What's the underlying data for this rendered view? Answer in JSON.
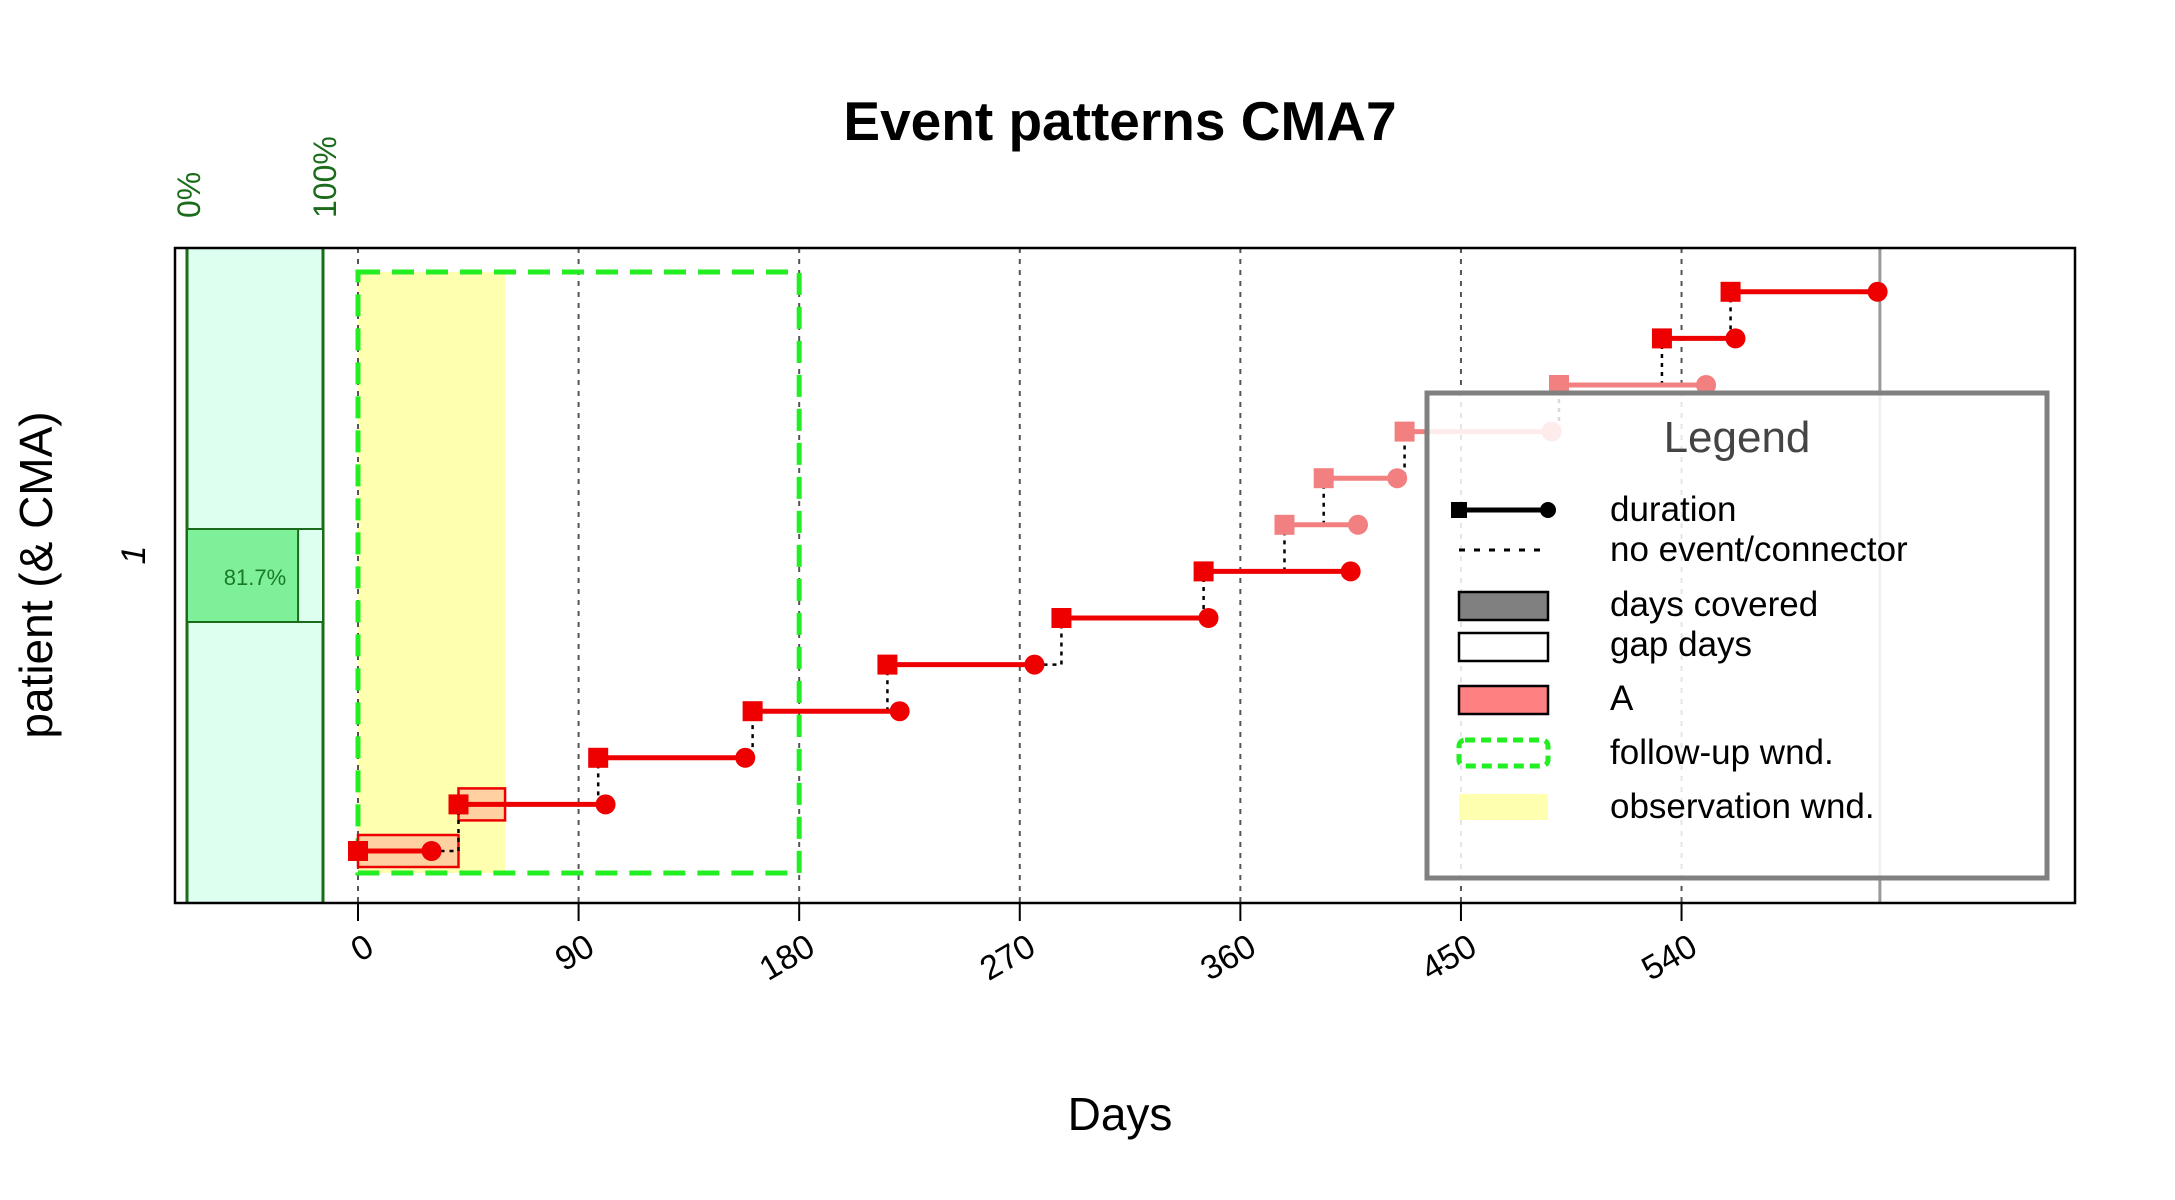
{
  "chart_data": {
    "type": "event-timeline",
    "title": "Event patterns CMA7",
    "xlabel": "Days",
    "ylabel": "patient (& CMA)",
    "xlim": [
      -67,
      625
    ],
    "x_ticks": [
      0,
      90,
      180,
      270,
      360,
      450,
      540
    ],
    "x_tick_labels": [
      "0",
      "90",
      "180",
      "270",
      "360",
      "450",
      "540"
    ],
    "patient_label": "1",
    "cma": {
      "value": 0.817,
      "label": "81.7%",
      "scale_labels": [
        "0%",
        "100%"
      ]
    },
    "follow_up_window": [
      0,
      180
    ],
    "observation_window": [
      0,
      60
    ],
    "events": [
      {
        "start": 0,
        "end": 30,
        "medication": "A",
        "in_window": true
      },
      {
        "start": 41,
        "end": 101,
        "medication": "A",
        "in_window": true
      },
      {
        "start": 98,
        "end": 158,
        "medication": "A",
        "in_window": true
      },
      {
        "start": 161,
        "end": 221,
        "medication": "A",
        "in_window": true
      },
      {
        "start": 216,
        "end": 276,
        "medication": "A",
        "in_window": true
      },
      {
        "start": 287,
        "end": 347,
        "medication": "A",
        "in_window": true
      },
      {
        "start": 345,
        "end": 405,
        "medication": "A",
        "in_window": true
      },
      {
        "start": 378,
        "end": 408,
        "medication": "A",
        "in_window": true
      },
      {
        "start": 394,
        "end": 424,
        "medication": "A",
        "in_window": true
      },
      {
        "start": 427,
        "end": 487,
        "medication": "A",
        "in_window": true
      },
      {
        "start": 490,
        "end": 550,
        "medication": "A",
        "in_window": true
      },
      {
        "start": 532,
        "end": 562,
        "medication": "A",
        "in_window": true
      },
      {
        "start": 560,
        "end": 620,
        "medication": "A",
        "in_window": true
      }
    ],
    "coverage_boxes": [
      {
        "start": 0,
        "end": 41
      },
      {
        "start": 41,
        "end": 60
      }
    ],
    "legend": {
      "title": "Legend",
      "placement": "right",
      "items": [
        {
          "label": "duration",
          "symbol": "line-square-dot",
          "color": "#000000"
        },
        {
          "label": "no event/connector",
          "symbol": "dotted-line",
          "color": "#000000"
        },
        {
          "label": "days covered",
          "symbol": "box",
          "color": "#808080"
        },
        {
          "label": "gap days",
          "symbol": "box",
          "color": "#ffffff"
        },
        {
          "label": "A",
          "symbol": "box",
          "color": "#ff8080"
        },
        {
          "label": "follow-up wnd.",
          "symbol": "dashed-box",
          "color": "#00ff00"
        },
        {
          "label": "observation wnd.",
          "symbol": "box",
          "color": "#ffffb0"
        }
      ]
    },
    "colors": {
      "event": "#ee0000",
      "event_faded": "#f38080",
      "follow_up": "#22ee22",
      "observation": "#ffffb0",
      "cma_panel_bg": "#dcfff0",
      "cma_bar": "#7ef09a",
      "cma_text": "#1b7a2a",
      "cma_axis": "#1a6b1a",
      "coverage_fill": "#ffd0a0"
    }
  }
}
